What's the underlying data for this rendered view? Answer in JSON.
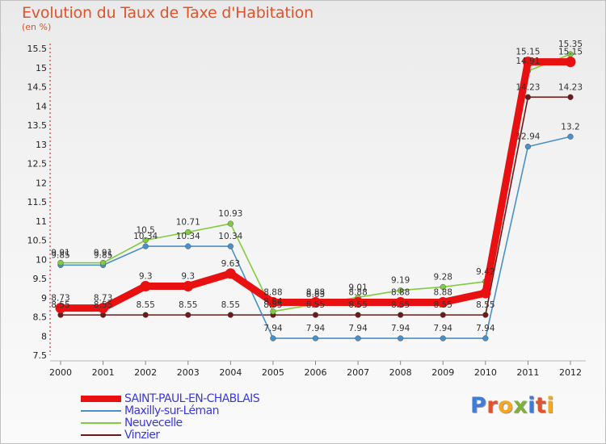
{
  "title": "Evolution du Taux de Taxe d'Habitation",
  "unit_label": "(en %)",
  "logo": {
    "text": "Proxiti",
    "letter_colors": [
      "#3b7dd8",
      "#e0532b",
      "#f5a623",
      "#7fb13a",
      "#3b7dd8",
      "#e0532b",
      "#f5a623"
    ]
  },
  "chart_data": {
    "type": "line",
    "title": "Evolution du Taux de Taxe d'Habitation",
    "ylabel": "(en %)",
    "xlabel": "",
    "x": [
      "2000",
      "2001",
      "2002",
      "2003",
      "2004",
      "2005",
      "2006",
      "2007",
      "2008",
      "2009",
      "2010",
      "2011",
      "2012"
    ],
    "ylim": [
      7.5,
      15.5
    ],
    "yticks": [
      "7.5",
      "8",
      "8.5",
      "9",
      "9.5",
      "10",
      "10.5",
      "11",
      "11.5",
      "12",
      "12.5",
      "13",
      "13.5",
      "14",
      "14.5",
      "15",
      "15.5"
    ],
    "grid": false,
    "legend_position": "bottom-left",
    "series": [
      {
        "name": "SAINT-PAUL-EN-CHABLAIS",
        "color": "#e81010",
        "values": [
          8.73,
          8.73,
          9.3,
          9.3,
          9.63,
          8.88,
          8.88,
          8.88,
          8.88,
          8.88,
          9.12,
          15.15,
          15.15
        ],
        "labels": [
          "8.73",
          "8.73",
          "9.3",
          "9.3",
          "9.63",
          "8.88",
          "8.88",
          "8.88",
          "8.88",
          "8.88",
          "",
          "15.15",
          "15.15"
        ]
      },
      {
        "name": "Maxilly-sur-Léman",
        "color": "#4a90c8",
        "values": [
          9.85,
          9.85,
          10.34,
          10.34,
          10.34,
          7.94,
          7.94,
          7.94,
          7.94,
          7.94,
          7.94,
          12.94,
          13.2
        ],
        "labels": [
          "9.85",
          "9.85",
          "10.34",
          "10.34",
          "10.34",
          "7.94",
          "7.94",
          "7.94",
          "7.94",
          "7.94",
          "7.94",
          "12.94",
          "13.2"
        ]
      },
      {
        "name": "Neuvecelle",
        "color": "#80cc40",
        "values": [
          9.91,
          9.91,
          10.5,
          10.71,
          10.93,
          8.64,
          8.83,
          9.01,
          9.19,
          9.28,
          9.42,
          14.91,
          15.35
        ],
        "labels": [
          "9.91",
          "9.91",
          "10.5",
          "10.71",
          "10.93",
          "8.64",
          "8.83",
          "9.01",
          "9.19",
          "9.28",
          "9.42",
          "14.91",
          "15.35"
        ]
      },
      {
        "name": "Vinzier",
        "color": "#6a1a1a",
        "values": [
          8.55,
          8.55,
          8.55,
          8.55,
          8.55,
          8.55,
          8.55,
          8.55,
          8.55,
          8.55,
          8.55,
          14.23,
          14.23
        ],
        "labels": [
          "8.55",
          "8.55",
          "8.55",
          "8.55",
          "8.55",
          "8.55",
          "8.55",
          "8.55",
          "8.55",
          "8.55",
          "8.55",
          "14.23",
          "14.23"
        ]
      }
    ]
  }
}
